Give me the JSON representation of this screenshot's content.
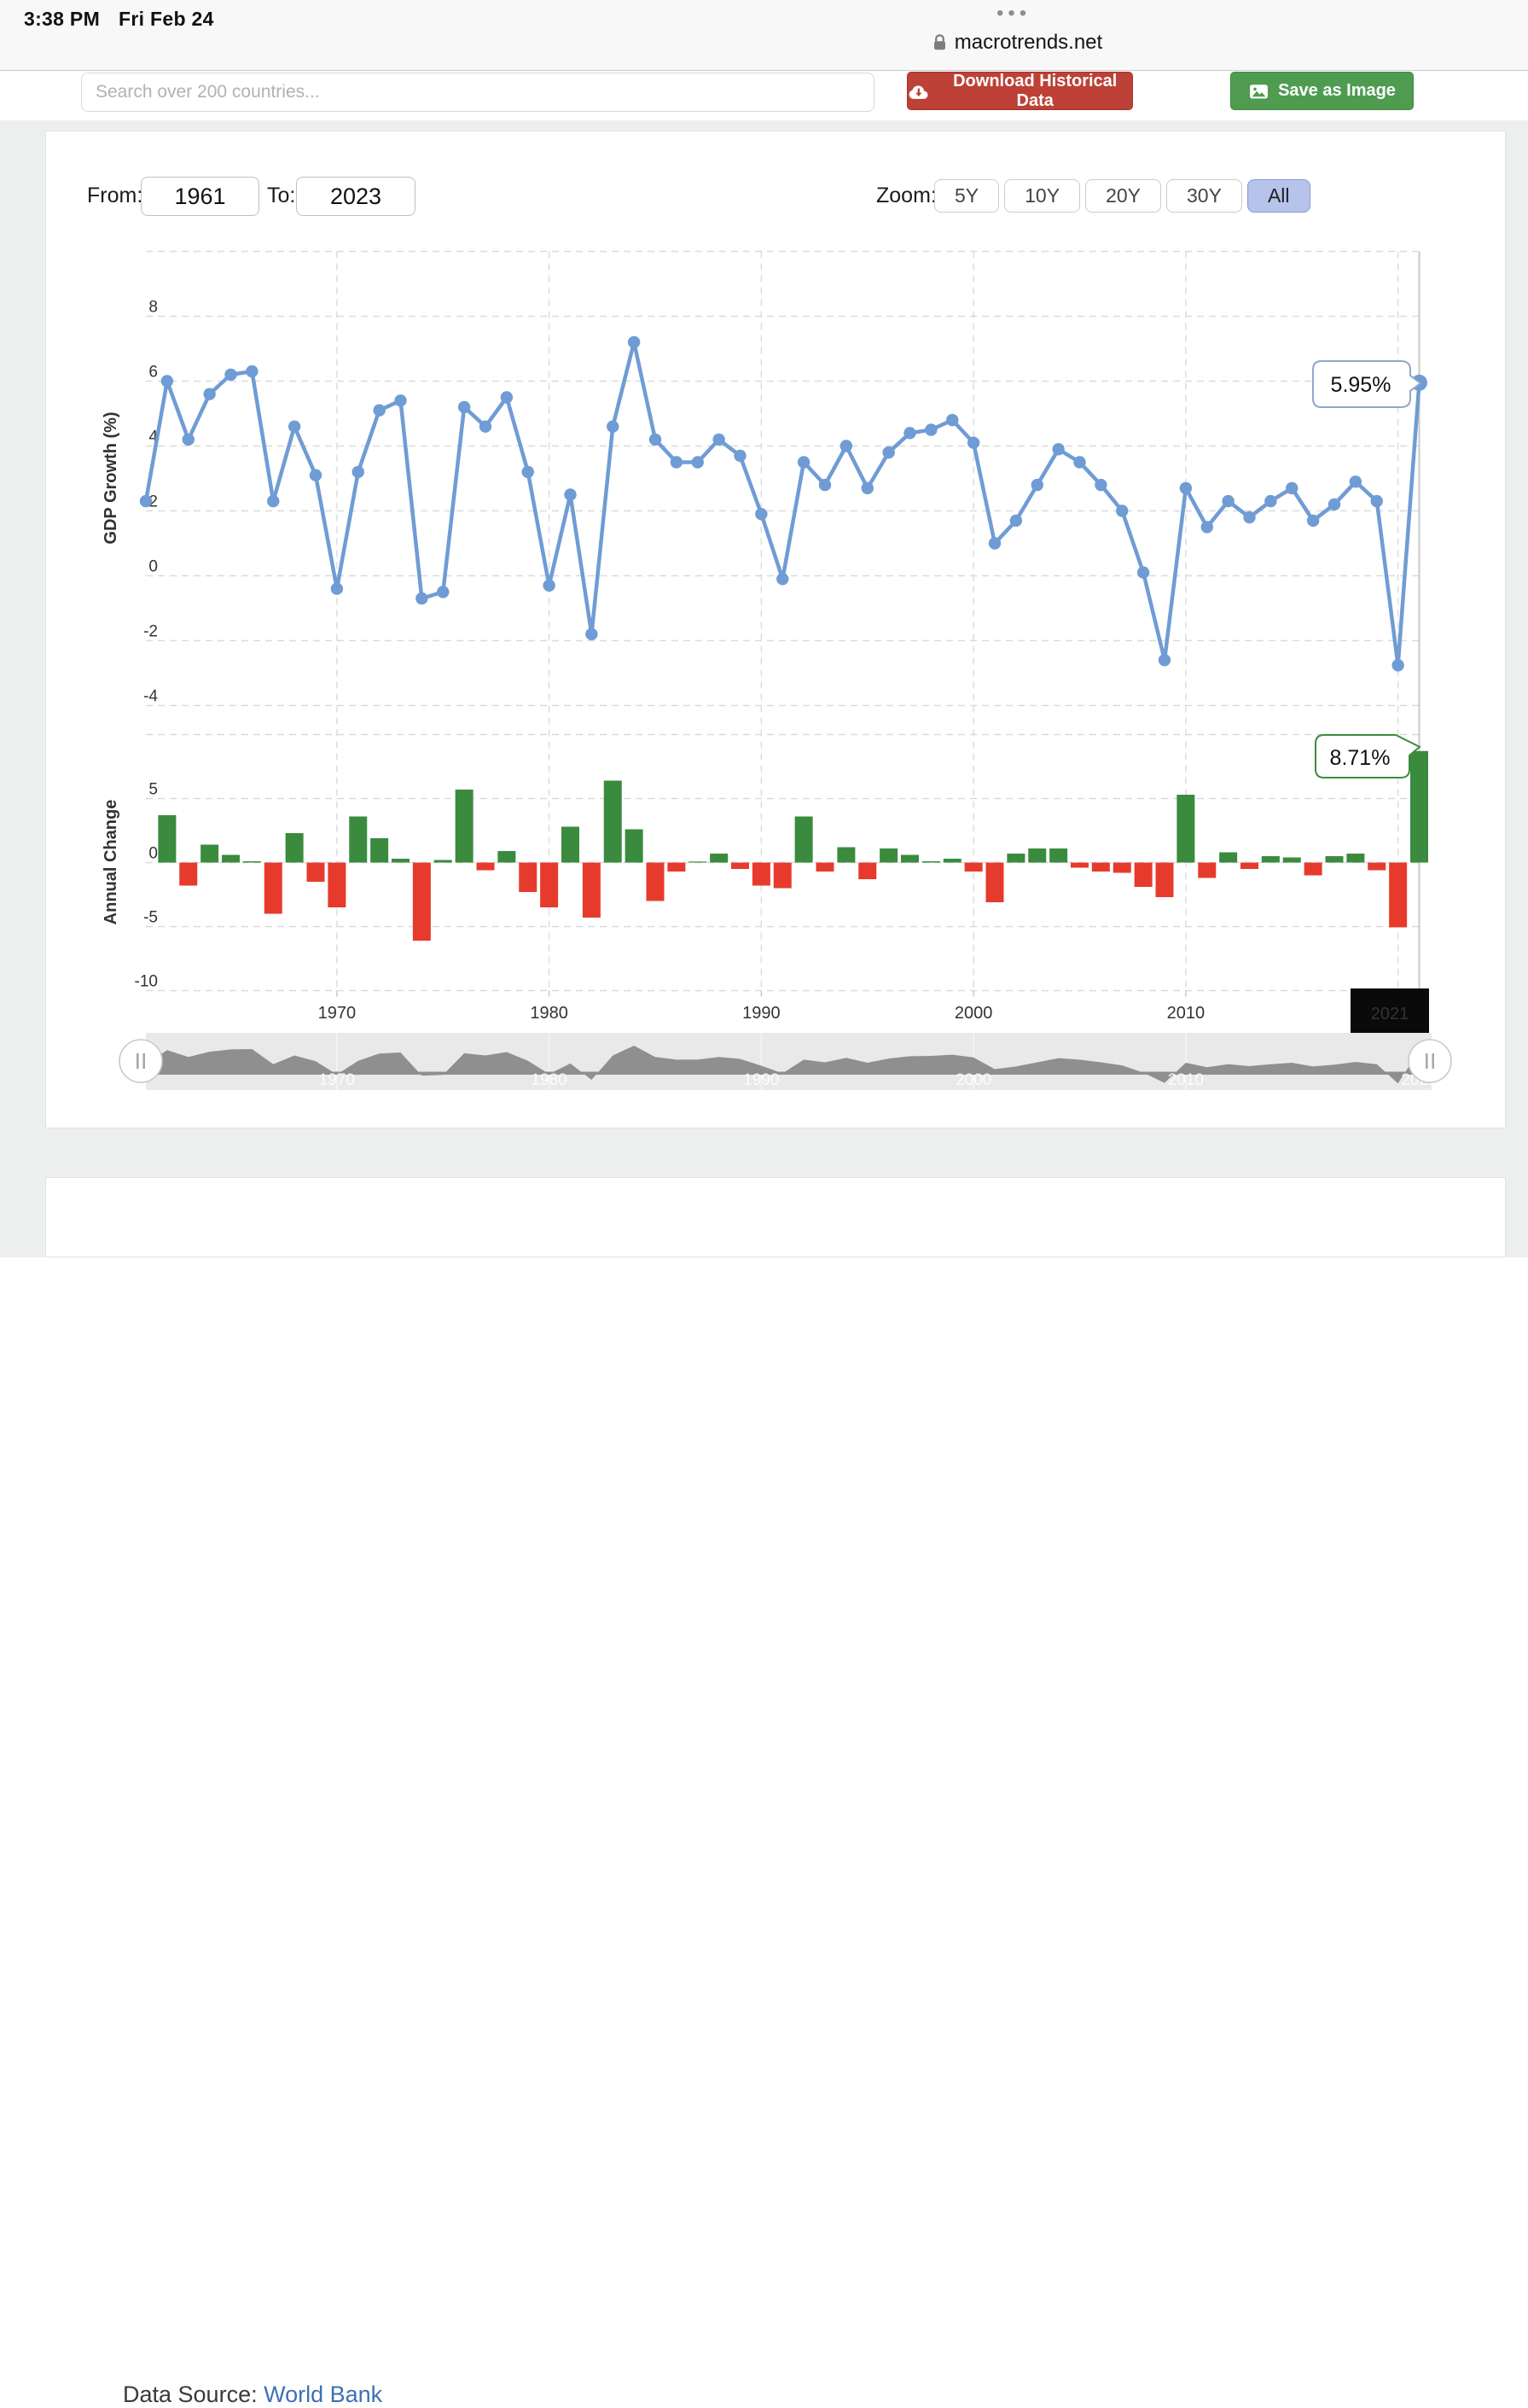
{
  "status_bar": {
    "time": "3:38 PM",
    "date": "Fri Feb 24",
    "menu_dots": "•••",
    "url": "macrotrends.net"
  },
  "toolbar": {
    "search_placeholder": "Search over 200 countries...",
    "download_button": "Download Historical Data",
    "save_image_button": "Save as Image",
    "download_color": "#bd4136",
    "save_color": "#4f9c51"
  },
  "controls": {
    "from_label": "From:",
    "from_value": "1961",
    "to_label": "To:",
    "to_value": "2023",
    "zoom_label": "Zoom:",
    "zoom_options": [
      "5Y",
      "10Y",
      "20Y",
      "30Y",
      "All"
    ],
    "zoom_selected": "All",
    "selected_color": "#b6c4ec"
  },
  "chart_data": [
    {
      "type": "line",
      "name": "GDP Growth",
      "ylabel": "GDP Growth (%)",
      "x": [
        1961,
        1962,
        1963,
        1964,
        1965,
        1966,
        1967,
        1968,
        1969,
        1970,
        1971,
        1972,
        1973,
        1974,
        1975,
        1976,
        1977,
        1978,
        1979,
        1980,
        1981,
        1982,
        1983,
        1984,
        1985,
        1986,
        1987,
        1988,
        1989,
        1990,
        1991,
        1992,
        1993,
        1994,
        1995,
        1996,
        1997,
        1998,
        1999,
        2000,
        2001,
        2002,
        2003,
        2004,
        2005,
        2006,
        2007,
        2008,
        2009,
        2010,
        2011,
        2012,
        2013,
        2014,
        2015,
        2016,
        2017,
        2018,
        2019,
        2020,
        2021
      ],
      "values": [
        2.3,
        6.0,
        4.2,
        5.6,
        6.2,
        6.3,
        2.3,
        4.6,
        3.1,
        -0.4,
        3.2,
        5.1,
        5.4,
        -0.7,
        -0.5,
        5.2,
        4.6,
        5.5,
        3.2,
        -0.3,
        2.5,
        -1.8,
        4.6,
        7.2,
        4.2,
        3.5,
        3.5,
        4.2,
        3.7,
        1.9,
        -0.1,
        3.5,
        2.8,
        4.0,
        2.7,
        3.8,
        4.4,
        4.5,
        4.8,
        4.1,
        1.0,
        1.7,
        2.8,
        3.9,
        3.5,
        2.8,
        2.0,
        0.1,
        -2.6,
        2.7,
        1.5,
        2.3,
        1.8,
        2.3,
        2.7,
        1.7,
        2.2,
        2.9,
        2.3,
        -2.76,
        5.95
      ],
      "ylim": [
        -4.8,
        10
      ],
      "yticks": [
        8,
        6,
        4,
        2,
        0,
        -2,
        -4
      ],
      "grid": "dashed",
      "color": "#6f9cd4",
      "tooltip": "5.95%",
      "tooltip_year": 2021
    },
    {
      "type": "bar",
      "name": "Annual Change",
      "ylabel": "Annual Change",
      "x": [
        1962,
        1963,
        1964,
        1965,
        1966,
        1967,
        1968,
        1969,
        1970,
        1971,
        1972,
        1973,
        1974,
        1975,
        1976,
        1977,
        1978,
        1979,
        1980,
        1981,
        1982,
        1983,
        1984,
        1985,
        1986,
        1987,
        1988,
        1989,
        1990,
        1991,
        1992,
        1993,
        1994,
        1995,
        1996,
        1997,
        1998,
        1999,
        2000,
        2001,
        2002,
        2003,
        2004,
        2005,
        2006,
        2007,
        2008,
        2009,
        2010,
        2011,
        2012,
        2013,
        2014,
        2015,
        2016,
        2017,
        2018,
        2019,
        2020,
        2021
      ],
      "values": [
        3.7,
        -1.8,
        1.4,
        0.6,
        0.1,
        -4.0,
        2.3,
        -1.5,
        -3.5,
        3.6,
        1.9,
        0.3,
        -6.1,
        0.2,
        5.7,
        -0.6,
        0.9,
        -2.3,
        -3.5,
        2.8,
        -4.3,
        6.4,
        2.6,
        -3.0,
        -0.7,
        0.05,
        0.7,
        -0.5,
        -1.8,
        -2.0,
        3.6,
        -0.7,
        1.2,
        -1.3,
        1.1,
        0.6,
        0.1,
        0.3,
        -0.7,
        -3.1,
        0.7,
        1.1,
        1.1,
        -0.4,
        -0.7,
        -0.8,
        -1.9,
        -2.7,
        5.3,
        -1.2,
        0.8,
        -0.5,
        0.5,
        0.4,
        -1.0,
        0.5,
        0.7,
        -0.6,
        -5.06,
        8.71
      ],
      "ylim": [
        -11,
        10
      ],
      "yticks": [
        5,
        0,
        -5,
        -10
      ],
      "grid": "dashed",
      "color_positive": "#3b8b3e",
      "color_negative": "#e63b2c",
      "tooltip": "8.71%",
      "tooltip_year": 2021
    }
  ],
  "xaxis": {
    "tick_labels": [
      "1970",
      "1980",
      "1990",
      "2000",
      "2010"
    ],
    "selected_label": "2021"
  },
  "navigator": {
    "labels": [
      "1970",
      "1980",
      "1990",
      "2000",
      "2010",
      "2021"
    ]
  },
  "footer": {
    "source_label": "Data Source: ",
    "source_link": "World Bank"
  }
}
